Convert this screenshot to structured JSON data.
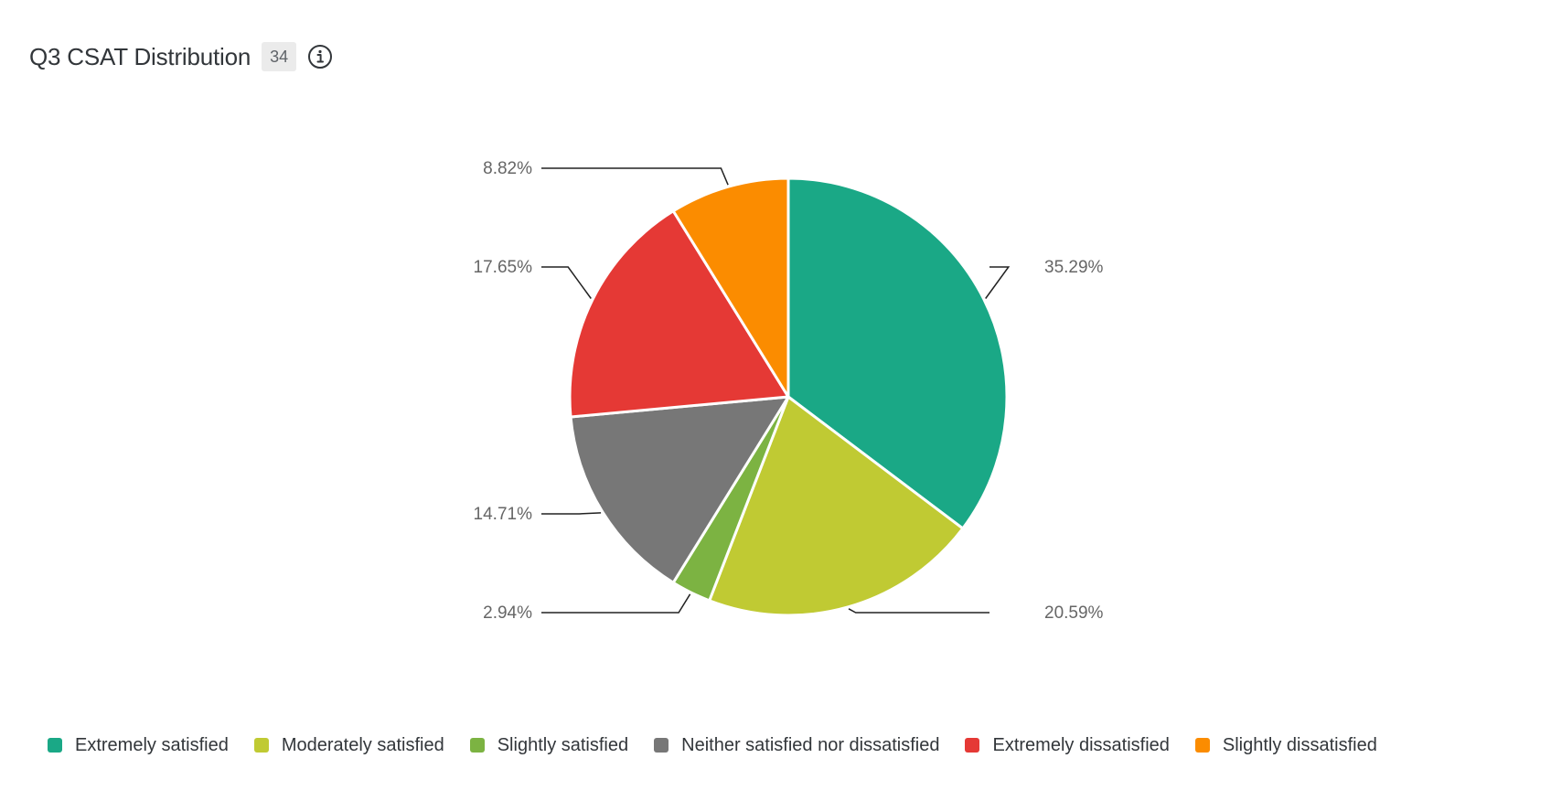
{
  "header": {
    "title": "Q3 CSAT Distribution",
    "count": "34",
    "info_icon": "info-circle-icon"
  },
  "chart_data": {
    "type": "pie",
    "title": "Q3 CSAT Distribution",
    "start_angle_deg": 0,
    "direction": "clockwise",
    "legend_position": "bottom",
    "slices": [
      {
        "name": "Extremely satisfied",
        "value": 35.29,
        "label": "35.29%",
        "color": "#1aa886"
      },
      {
        "name": "Moderately satisfied",
        "value": 20.59,
        "label": "20.59%",
        "color": "#c0ca33"
      },
      {
        "name": "Slightly satisfied",
        "value": 2.94,
        "label": "2.94%",
        "color": "#7cb342"
      },
      {
        "name": "Neither satisfied nor dissatisfied",
        "value": 14.71,
        "label": "14.71%",
        "color": "#777777"
      },
      {
        "name": "Extremely dissatisfied",
        "value": 17.65,
        "label": "17.65%",
        "color": "#e53935"
      },
      {
        "name": "Slightly dissatisfied",
        "value": 8.82,
        "label": "8.82%",
        "color": "#fb8c00"
      }
    ]
  }
}
